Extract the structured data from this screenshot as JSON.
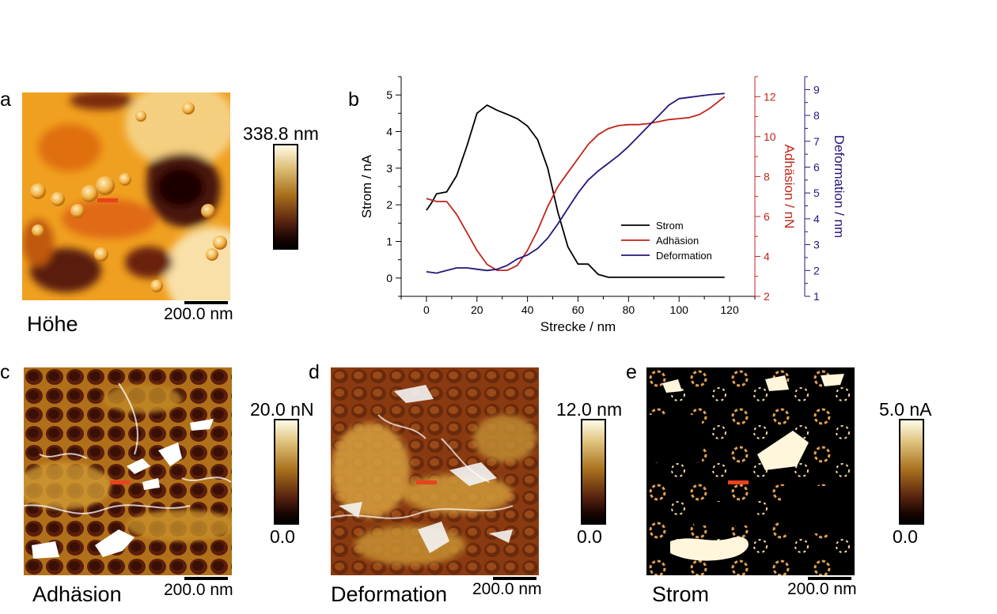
{
  "panels": [
    {
      "letter": "a",
      "title": "Höhe",
      "scale": "200.0 nm",
      "cbar_max": "338.8 nm",
      "cbar_min": ""
    },
    {
      "letter": "b"
    },
    {
      "letter": "c",
      "title": "Adhäsion",
      "scale": "200.0 nm",
      "cbar_max": "20.0 nN",
      "cbar_min": "0.0"
    },
    {
      "letter": "d",
      "title": "Deformation",
      "scale": "200.0 nm",
      "cbar_max": "12.0 nm",
      "cbar_min": "0.0"
    },
    {
      "letter": "e",
      "title": "Strom",
      "scale": "200.0 nm",
      "cbar_max": "5.0 nA",
      "cbar_min": "0.0"
    }
  ],
  "colors": {
    "strom": "#000000",
    "adhaesion": "#c0241a",
    "deformation": "#23177c",
    "marker": "#e8431c"
  },
  "chart_data": {
    "type": "line",
    "xlabel": "Strecke / nm",
    "xlim": [
      -10,
      130
    ],
    "xticks": [
      0,
      20,
      40,
      60,
      80,
      100,
      120
    ],
    "axes": [
      {
        "id": "strom",
        "label": "Strom / nA",
        "lim": [
          -0.5,
          5.5
        ],
        "ticks": [
          0,
          1,
          2,
          3,
          4,
          5
        ]
      },
      {
        "id": "adhaesion",
        "label": "Adhäsion / nN",
        "lim": [
          2,
          13
        ],
        "ticks": [
          2,
          4,
          6,
          8,
          10,
          12
        ]
      },
      {
        "id": "deformation",
        "label": "Deformation / nm",
        "lim": [
          1,
          9.5
        ],
        "ticks": [
          1,
          2,
          3,
          4,
          5,
          6,
          7,
          8,
          9
        ]
      }
    ],
    "legend_position": "lower-right",
    "series": [
      {
        "name": "Strom",
        "axis": "strom",
        "x": [
          0,
          2,
          4,
          8,
          12,
          16,
          20,
          24,
          28,
          32,
          36,
          40,
          44,
          48,
          52,
          56,
          60,
          64,
          68,
          72,
          80,
          90,
          100,
          110,
          118
        ],
        "y": [
          1.85,
          2.05,
          2.3,
          2.35,
          2.8,
          3.6,
          4.5,
          4.72,
          4.58,
          4.47,
          4.35,
          4.15,
          3.78,
          3.0,
          1.8,
          0.85,
          0.38,
          0.38,
          0.1,
          0.02,
          0.02,
          0.02,
          0.02,
          0.02,
          0.02
        ]
      },
      {
        "name": "Adhäsion",
        "axis": "adhaesion",
        "x": [
          0,
          4,
          8,
          12,
          16,
          20,
          24,
          28,
          32,
          36,
          40,
          44,
          48,
          52,
          56,
          60,
          64,
          68,
          72,
          76,
          80,
          84,
          88,
          92,
          96,
          100,
          104,
          108,
          112,
          115,
          118
        ],
        "y": [
          6.9,
          6.75,
          6.75,
          6.1,
          5.2,
          4.3,
          3.6,
          3.3,
          3.3,
          3.55,
          4.3,
          5.3,
          6.5,
          7.5,
          8.2,
          8.9,
          9.6,
          10.1,
          10.4,
          10.55,
          10.6,
          10.6,
          10.65,
          10.75,
          10.85,
          10.9,
          10.95,
          11.1,
          11.4,
          11.7,
          12.0
        ]
      },
      {
        "name": "Deformation",
        "axis": "deformation",
        "x": [
          0,
          4,
          8,
          12,
          16,
          20,
          24,
          28,
          32,
          36,
          40,
          44,
          48,
          52,
          56,
          60,
          64,
          68,
          72,
          76,
          80,
          84,
          88,
          92,
          96,
          100,
          104,
          108,
          112,
          118
        ],
        "y": [
          1.95,
          1.9,
          2.0,
          2.1,
          2.1,
          2.05,
          2.0,
          2.05,
          2.2,
          2.45,
          2.6,
          2.85,
          3.25,
          3.8,
          4.4,
          5.0,
          5.5,
          5.85,
          6.15,
          6.45,
          6.8,
          7.2,
          7.6,
          8.0,
          8.4,
          8.65,
          8.7,
          8.75,
          8.8,
          8.85
        ]
      }
    ]
  }
}
